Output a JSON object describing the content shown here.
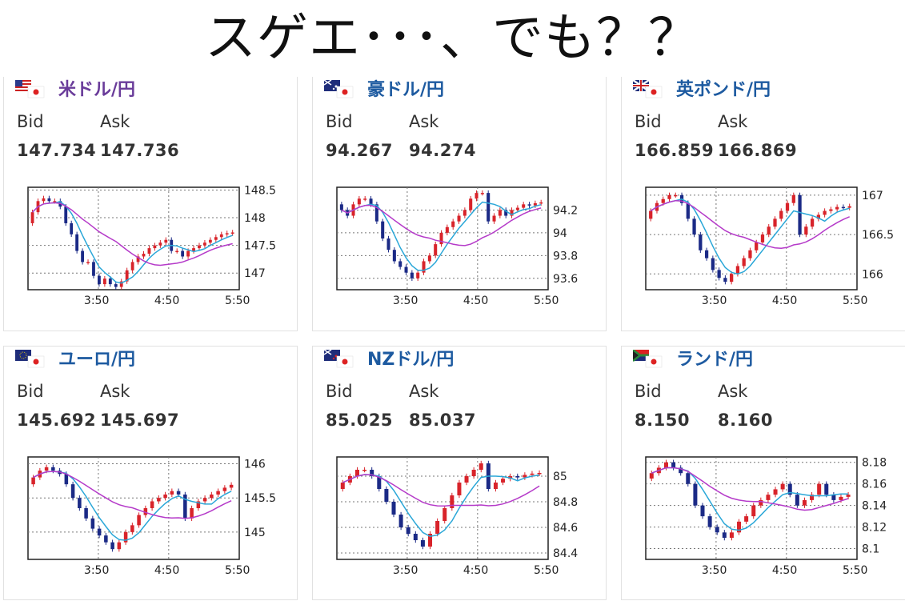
{
  "headline": "スゲエ･･･、でも？？",
  "time_labels": [
    "3:50",
    "4:50",
    "5:50"
  ],
  "panels": [
    {
      "pair": "米ドル/円",
      "flag": "us-jp-flag-icon",
      "bid_label": "Bid",
      "ask_label": "Ask",
      "bid": "147.734",
      "ask": "147.736",
      "chart_data": {
        "type": "candlestick",
        "ylim": [
          146.7,
          148.55
        ],
        "yticks": [
          "148.5",
          "148",
          "147.5",
          "147"
        ],
        "ytick_values": [
          148.5,
          148,
          147.5,
          147
        ],
        "xticks": [
          "3:50",
          "4:50",
          "5:50"
        ],
        "closes": [
          148.1,
          148.3,
          148.35,
          148.3,
          148.3,
          148.2,
          147.9,
          147.7,
          147.4,
          147.2,
          147.2,
          146.95,
          146.8,
          146.9,
          146.8,
          146.75,
          146.85,
          147.05,
          147.2,
          147.3,
          147.35,
          147.45,
          147.5,
          147.55,
          147.6,
          147.4,
          147.4,
          147.3,
          147.4,
          147.45,
          147.5,
          147.55,
          147.6,
          147.65,
          147.7,
          147.72,
          147.734
        ]
      }
    },
    {
      "pair": "豪ドル/円",
      "flag": "au-jp-flag-icon",
      "bid_label": "Bid",
      "ask_label": "Ask",
      "bid": "94.267",
      "ask": "94.274",
      "chart_data": {
        "type": "candlestick",
        "ylim": [
          93.5,
          94.4
        ],
        "yticks": [
          "94.2",
          "94",
          "93.8",
          "93.6"
        ],
        "ytick_values": [
          94.2,
          94,
          93.8,
          93.6
        ],
        "xticks": [
          "3:50",
          "4:50",
          "5:50"
        ],
        "closes": [
          94.2,
          94.15,
          94.25,
          94.3,
          94.3,
          94.25,
          94.1,
          93.95,
          93.85,
          93.75,
          93.7,
          93.65,
          93.6,
          93.65,
          93.75,
          93.8,
          93.9,
          94.0,
          94.05,
          94.1,
          94.15,
          94.2,
          94.3,
          94.35,
          94.35,
          94.1,
          94.15,
          94.2,
          94.15,
          94.2,
          94.22,
          94.25,
          94.24,
          94.26,
          94.267
        ]
      }
    },
    {
      "pair": "英ポンド/円",
      "flag": "gb-jp-flag-icon",
      "bid_label": "Bid",
      "ask_label": "Ask",
      "bid": "166.859",
      "ask": "166.869",
      "chart_data": {
        "type": "candlestick",
        "ylim": [
          165.8,
          167.1
        ],
        "yticks": [
          "167",
          "166.5",
          "166"
        ],
        "ytick_values": [
          167,
          166.5,
          166
        ],
        "xticks": [
          "3:50",
          "4:50",
          "5:50"
        ],
        "closes": [
          166.8,
          166.9,
          166.95,
          167.0,
          167.0,
          166.9,
          166.7,
          166.5,
          166.3,
          166.2,
          166.05,
          165.95,
          165.9,
          166.0,
          166.1,
          166.2,
          166.3,
          166.4,
          166.5,
          166.6,
          166.7,
          166.8,
          166.9,
          167.0,
          166.5,
          166.6,
          166.7,
          166.75,
          166.8,
          166.82,
          166.85,
          166.84,
          166.859
        ]
      }
    },
    {
      "pair": "ユーロ/円",
      "flag": "eu-jp-flag-icon",
      "bid_label": "Bid",
      "ask_label": "Ask",
      "bid": "145.692",
      "ask": "145.697",
      "chart_data": {
        "type": "candlestick",
        "ylim": [
          144.6,
          146.1
        ],
        "yticks": [
          "146",
          "145.5",
          "145"
        ],
        "ytick_values": [
          146,
          145.5,
          145
        ],
        "xticks": [
          "3:50",
          "4:50",
          "5:50"
        ],
        "closes": [
          145.8,
          145.9,
          145.95,
          145.9,
          145.85,
          145.7,
          145.5,
          145.35,
          145.2,
          145.05,
          144.95,
          144.85,
          144.75,
          144.85,
          145.0,
          145.1,
          145.25,
          145.35,
          145.45,
          145.5,
          145.55,
          145.6,
          145.55,
          145.2,
          145.35,
          145.45,
          145.5,
          145.55,
          145.6,
          145.65,
          145.692
        ]
      }
    },
    {
      "pair": "NZドル/円",
      "flag": "nz-jp-flag-icon",
      "bid_label": "Bid",
      "ask_label": "Ask",
      "bid": "85.025",
      "ask": "85.037",
      "chart_data": {
        "type": "candlestick",
        "ylim": [
          84.35,
          85.15
        ],
        "yticks": [
          "85",
          "84.8",
          "84.6",
          "84.4"
        ],
        "ytick_values": [
          85,
          84.8,
          84.6,
          84.4
        ],
        "xticks": [
          "3:50",
          "4:50",
          "5:50"
        ],
        "closes": [
          84.95,
          85.0,
          85.05,
          85.05,
          85.0,
          84.9,
          84.8,
          84.7,
          84.6,
          84.55,
          84.5,
          84.45,
          84.55,
          84.65,
          84.75,
          84.85,
          84.95,
          85.0,
          85.05,
          85.1,
          84.9,
          84.95,
          84.98,
          85.0,
          84.99,
          85.01,
          85.02,
          85.025
        ]
      }
    },
    {
      "pair": "ランド/円",
      "flag": "za-jp-flag-icon",
      "bid_label": "Bid",
      "ask_label": "Ask",
      "bid": "8.150",
      "ask": "8.160",
      "chart_data": {
        "type": "candlestick",
        "ylim": [
          8.09,
          8.185
        ],
        "yticks": [
          "8.18",
          "8.16",
          "8.14",
          "8.12",
          "8.1"
        ],
        "ytick_values": [
          8.18,
          8.16,
          8.14,
          8.12,
          8.1
        ],
        "xticks": [
          "3:50",
          "4:50",
          "5:50"
        ],
        "closes": [
          8.17,
          8.175,
          8.18,
          8.175,
          8.17,
          8.16,
          8.14,
          8.13,
          8.12,
          8.115,
          8.11,
          8.115,
          8.125,
          8.13,
          8.14,
          8.145,
          8.15,
          8.155,
          8.16,
          8.15,
          8.14,
          8.145,
          8.15,
          8.16,
          8.15,
          8.145,
          8.148,
          8.15
        ]
      }
    }
  ],
  "colors": {
    "up": "#d8232a",
    "down": "#1b2a86",
    "ma_fast": "#2aa7d8",
    "ma_slow": "#b53ac9",
    "grid": "#777777"
  }
}
